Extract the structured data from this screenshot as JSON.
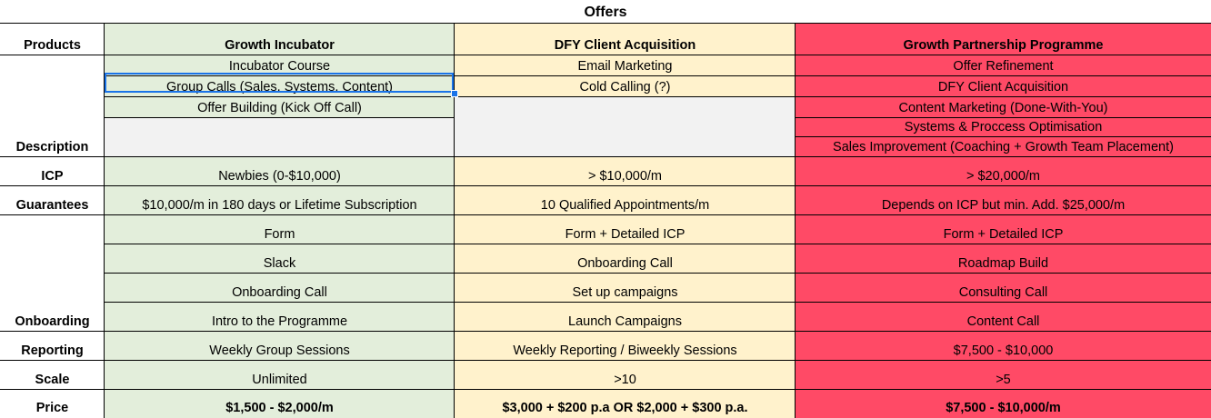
{
  "title": "Offers",
  "labels": {
    "products": "Products",
    "description": "Description",
    "icp": "ICP",
    "guarantees": "Guarantees",
    "onboarding": "Onboarding",
    "reporting": "Reporting",
    "scale": "Scale",
    "price": "Price"
  },
  "columns": [
    {
      "name": "Growth Incubator",
      "color": "#e3eedb",
      "description": [
        "Incubator Course",
        "Group Calls (Sales, Systems, Content)",
        "Offer Building (Kick Off Call)"
      ],
      "icp": "Newbies (0-$10,000)",
      "guarantees": "$10,000/m in 180 days or Lifetime Subscription",
      "onboarding": [
        "Form",
        "Slack",
        "Onboarding Call",
        "Intro to the Programme"
      ],
      "reporting": "Weekly Group Sessions",
      "scale": "Unlimited",
      "price": "$1,500 - $2,000/m"
    },
    {
      "name": "DFY Client Acquisition",
      "color": "#fff2cc",
      "description": [
        "Email Marketing",
        "Cold Calling (?)"
      ],
      "icp": "> $10,000/m",
      "guarantees": "10 Qualified Appointments/m",
      "onboarding": [
        "Form + Detailed ICP",
        "Onboarding Call",
        "Set up campaigns",
        "Launch Campaigns"
      ],
      "reporting": "Weekly Reporting / Biweekly Sessions",
      "scale": ">10",
      "price": "$3,000 + $200 p.a OR $2,000 + $300 p.a."
    },
    {
      "name": "Growth Partnership Programme",
      "color": "#ff4a66",
      "description": [
        "Offer Refinement",
        "DFY Client Acquisition",
        "Content Marketing (Done-With-You)",
        "Systems & Proccess Optimisation",
        "Sales Improvement (Coaching + Growth Team Placement)"
      ],
      "icp": "> $20,000/m",
      "guarantees": "Depends on ICP but min. Add. $25,000/m",
      "onboarding": [
        "Form + Detailed ICP",
        "Roadmap Build",
        "Consulting Call",
        "Content Call"
      ],
      "reporting": "$7,500 - $10,000",
      "scale": ">5",
      "price": "$7,500 - $10,000/m"
    }
  ]
}
